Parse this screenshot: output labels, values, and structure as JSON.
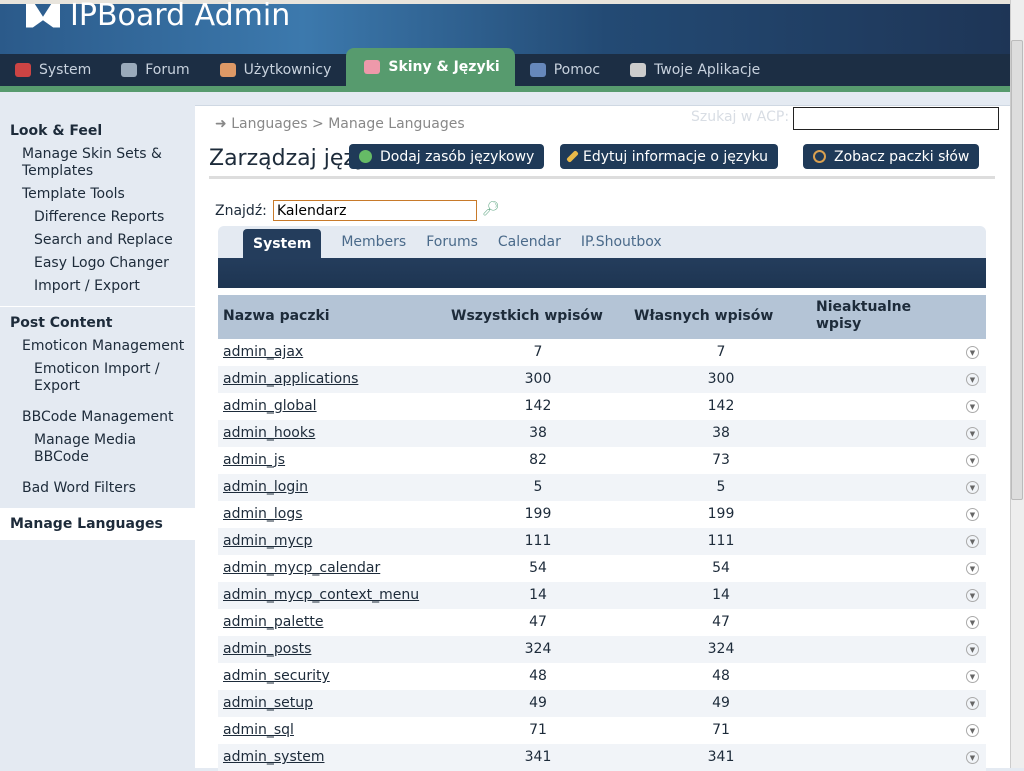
{
  "app": {
    "title": "IPBoard  Admin"
  },
  "nav": [
    {
      "label": "System",
      "color": "#c44"
    },
    {
      "label": "Forum",
      "color": "#9ab"
    },
    {
      "label": "Użytkownicy",
      "color": "#d96"
    },
    {
      "label": "Skiny & Języki",
      "color": "#e9a",
      "active": true
    },
    {
      "label": "Pomoc",
      "color": "#68b"
    },
    {
      "label": "Twoje Aplikacje",
      "color": "#ccc"
    }
  ],
  "sidebar": {
    "section1": "Look & Feel",
    "items1": [
      "Manage Skin Sets & Templates",
      "Template Tools",
      "Difference Reports",
      "Search and Replace",
      "Easy Logo Changer",
      "Import / Export"
    ],
    "section2": "Post Content",
    "items2": [
      "Emoticon Management",
      "Emoticon Import / Export",
      "BBCode Management",
      "Manage Media BBCode",
      "Bad Word Filters"
    ],
    "active": "Manage Languages"
  },
  "breadcrumb": {
    "a": "Languages",
    "sep": ">",
    "b": "Manage Languages"
  },
  "acp_search": {
    "label": "Szukaj w ACP:",
    "value": ""
  },
  "page_title": "Zarządzaj języ",
  "buttons": [
    "Dodaj zasób językowy",
    "Edytuj informacje o języku",
    "Zobacz paczki słów"
  ],
  "find": {
    "label": "Znajdź:",
    "value": "Kalendarz"
  },
  "tabs": [
    "System",
    "Members",
    "Forums",
    "Calendar",
    "IP.Shoutbox"
  ],
  "table": {
    "headers": [
      "Nazwa paczki",
      "Wszystkich wpisów",
      "Własnych wpisów",
      "Nieaktualne wpisy"
    ],
    "rows": [
      [
        "admin_ajax",
        "7",
        "7"
      ],
      [
        "admin_applications",
        "300",
        "300"
      ],
      [
        "admin_global",
        "142",
        "142"
      ],
      [
        "admin_hooks",
        "38",
        "38"
      ],
      [
        "admin_js",
        "82",
        "73"
      ],
      [
        "admin_login",
        "5",
        "5"
      ],
      [
        "admin_logs",
        "199",
        "199"
      ],
      [
        "admin_mycp",
        "111",
        "111"
      ],
      [
        "admin_mycp_calendar",
        "54",
        "54"
      ],
      [
        "admin_mycp_context_menu",
        "14",
        "14"
      ],
      [
        "admin_palette",
        "47",
        "47"
      ],
      [
        "admin_posts",
        "324",
        "324"
      ],
      [
        "admin_security",
        "48",
        "48"
      ],
      [
        "admin_setup",
        "49",
        "49"
      ],
      [
        "admin_sql",
        "71",
        "71"
      ],
      [
        "admin_system",
        "341",
        "341"
      ]
    ]
  }
}
